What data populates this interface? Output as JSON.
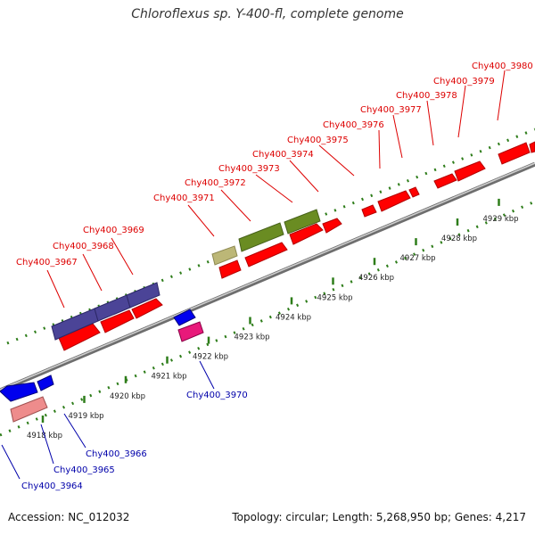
{
  "title": "Chloroflexus sp. Y-400-fl, complete genome",
  "footer": {
    "accession": "Accession: NC_012032",
    "summary": "Topology: circular; Length: 5,268,950 bp; Genes: 4,217"
  },
  "colors": {
    "forward_gene": "#ff0000",
    "reverse_gene": "#0000ee",
    "forward_label": "#dd0000",
    "reverse_label": "#0000aa",
    "backbone": "#8a8a8a",
    "scale_ticks": "#2e7d1a",
    "operon_purple": "#4b4497",
    "operon_green": "#6a8c22",
    "operon_khaki": "#bcb777",
    "pink_gene": "#e8197a",
    "salmon_gene": "#ee8c8c"
  },
  "scale": {
    "labels": [
      "4918 kbp",
      "4919 kbp",
      "4920 kbp",
      "4921 kbp",
      "4922 kbp",
      "4923 kbp",
      "4924 kbp",
      "4925 kbp",
      "4926 kbp",
      "4927 kbp",
      "4928 kbp",
      "4929 kbp"
    ]
  },
  "genes_forward": [
    "Chy400_3967",
    "Chy400_3968",
    "Chy400_3969",
    "Chy400_3971",
    "Chy400_3972",
    "Chy400_3973",
    "Chy400_3974",
    "Chy400_3975",
    "Chy400_3976",
    "Chy400_3977",
    "Chy400_3978",
    "Chy400_3979",
    "Chy400_3980"
  ],
  "genes_reverse": [
    "Chy400_3964",
    "Chy400_3965",
    "Chy400_3966",
    "Chy400_3970"
  ]
}
